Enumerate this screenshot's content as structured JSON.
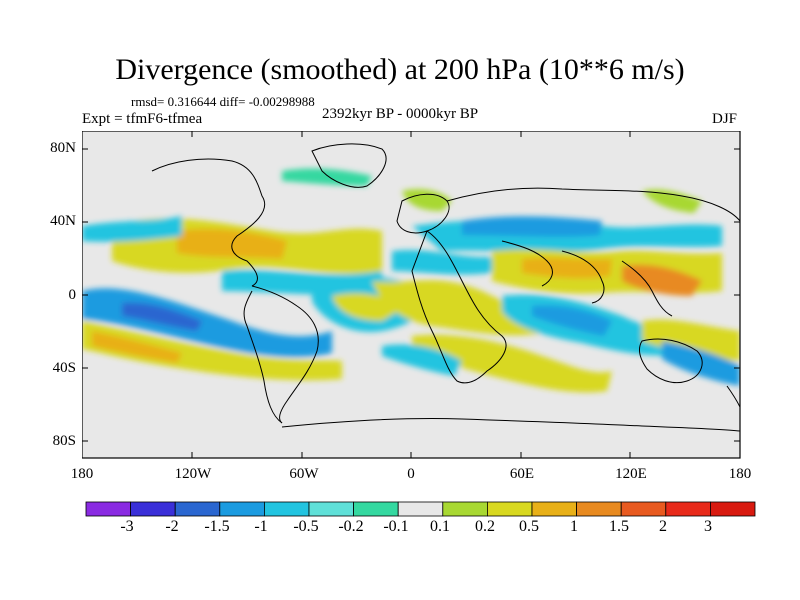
{
  "title": "Divergence (smoothed) at 200 hPa (10**6 m/s)",
  "stats": "rmsd= 0.316644 diff= -0.00298988",
  "experiment": "Expt = tfmF6-tfmea",
  "period": "2392kyr BP - 0000kyr BP",
  "season": "DJF",
  "lat_labels": [
    "80N",
    "40N",
    "0",
    "40S",
    "80S"
  ],
  "lon_labels": [
    "180",
    "120W",
    "60W",
    "0",
    "60E",
    "120E",
    "180"
  ],
  "colorbar": {
    "labels": [
      "-3",
      "-2",
      "-1.5",
      "-1",
      "-0.5",
      "-0.2",
      "-0.1",
      "0.1",
      "0.2",
      "0.5",
      "1",
      "1.5",
      "2",
      "3"
    ],
    "colors": [
      "#8a2be2",
      "#3a2fd8",
      "#2a66d0",
      "#1b9be0",
      "#22c4e0",
      "#5fe0d8",
      "#34d8a0",
      "#e8e8e8",
      "#a8d832",
      "#d8d820",
      "#e8b018",
      "#e88a20",
      "#e85a20",
      "#e82a1a",
      "#d81a10"
    ]
  },
  "map_colors": {
    "ocean_bg": "#e8e8e8",
    "coast": "#000000"
  }
}
